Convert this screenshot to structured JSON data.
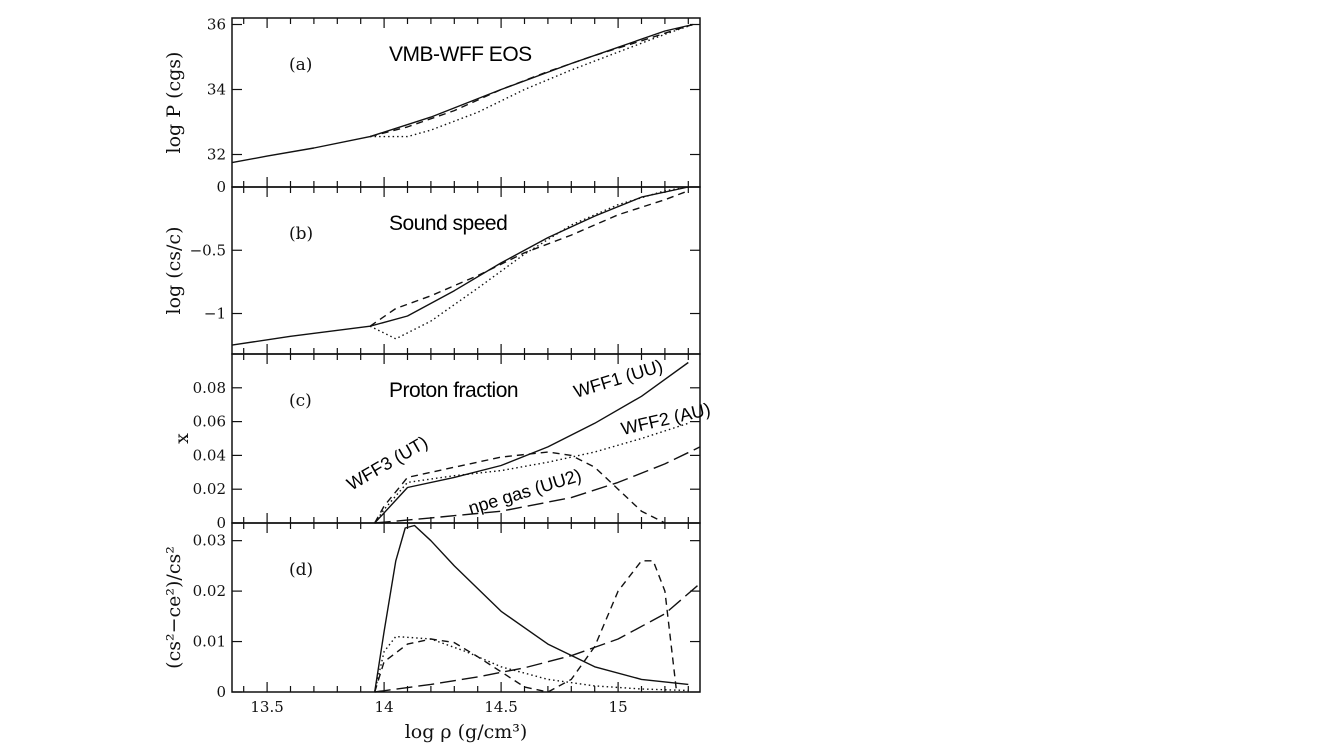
{
  "chart_data": {
    "type": "line",
    "xlabel": "log ρ (g/cm³)",
    "xlim": [
      13.35,
      15.35
    ],
    "xticks": [
      "13.5",
      "14",
      "14.5",
      "15"
    ],
    "panels": [
      {
        "tag": "(a)",
        "title": "VMB-WFF EOS",
        "ylabel": "log P (cgs)",
        "ylim": [
          31.0,
          36.2
        ],
        "yticks": [
          {
            "v": 32,
            "t": "32"
          },
          {
            "v": 34,
            "t": "34"
          },
          {
            "v": 36,
            "t": "36"
          }
        ],
        "series": [
          {
            "style": "solid",
            "x": [
              13.35,
              13.5,
              13.7,
              13.94,
              14.2,
              14.5,
              14.8,
              15.0,
              15.2,
              15.32
            ],
            "y": [
              31.75,
              31.95,
              32.2,
              32.55,
              33.15,
              34.0,
              34.8,
              35.3,
              35.8,
              36.0
            ]
          },
          {
            "style": "dashed",
            "x": [
              13.94,
              14.1,
              14.3,
              14.5,
              14.7,
              14.9,
              15.1,
              15.25,
              15.32
            ],
            "y": [
              32.55,
              32.85,
              33.35,
              34.0,
              34.55,
              35.05,
              35.5,
              35.85,
              36.0
            ]
          },
          {
            "style": "dotted",
            "x": [
              13.94,
              14.1,
              14.2,
              14.4,
              14.6,
              14.8,
              15.0,
              15.2,
              15.32
            ],
            "y": [
              32.55,
              32.55,
              32.75,
              33.3,
              34.0,
              34.6,
              35.15,
              35.7,
              36.0
            ]
          }
        ],
        "labels": []
      },
      {
        "tag": "(b)",
        "title": "Sound speed",
        "ylabel": "log (cs/c)",
        "ylim": [
          -1.32,
          0.0
        ],
        "yticks": [
          {
            "v": 0,
            "t": "0"
          },
          {
            "v": -0.5,
            "t": "−0.5"
          },
          {
            "v": -1,
            "t": "−1"
          }
        ],
        "series": [
          {
            "style": "solid",
            "x": [
              13.35,
              13.6,
              13.94,
              14.1,
              14.3,
              14.5,
              14.7,
              14.9,
              15.1,
              15.3
            ],
            "y": [
              -1.25,
              -1.18,
              -1.1,
              -1.02,
              -0.82,
              -0.6,
              -0.4,
              -0.23,
              -0.08,
              0.0
            ]
          },
          {
            "style": "dashed",
            "x": [
              13.94,
              14.05,
              14.2,
              14.4,
              14.6,
              14.8,
              15.0,
              15.2,
              15.3
            ],
            "y": [
              -1.1,
              -0.96,
              -0.86,
              -0.7,
              -0.52,
              -0.38,
              -0.22,
              -0.1,
              -0.03
            ]
          },
          {
            "style": "dotted",
            "x": [
              13.94,
              14.05,
              14.2,
              14.4,
              14.6,
              14.8,
              15.0,
              15.2,
              15.3
            ],
            "y": [
              -1.1,
              -1.2,
              -1.06,
              -0.8,
              -0.53,
              -0.3,
              -0.14,
              -0.03,
              0.0
            ]
          }
        ],
        "labels": []
      },
      {
        "tag": "(c)",
        "title": "Proton fraction",
        "ylabel": "x",
        "ylim": [
          0.0,
          0.1
        ],
        "yticks": [
          {
            "v": 0,
            "t": "0"
          },
          {
            "v": 0.02,
            "t": "0.02"
          },
          {
            "v": 0.04,
            "t": "0.04"
          },
          {
            "v": 0.06,
            "t": "0.06"
          },
          {
            "v": 0.08,
            "t": "0.08"
          }
        ],
        "series": [
          {
            "style": "solid",
            "x": [
              13.96,
              14.0,
              14.1,
              14.3,
              14.5,
              14.7,
              14.9,
              15.1,
              15.3
            ],
            "y": [
              0.0,
              0.006,
              0.021,
              0.027,
              0.034,
              0.045,
              0.059,
              0.075,
              0.095
            ]
          },
          {
            "style": "dashed",
            "x": [
              13.96,
              14.0,
              14.1,
              14.3,
              14.5,
              14.7,
              14.8,
              14.9,
              15.0,
              15.1,
              15.2
            ],
            "y": [
              0.0,
              0.01,
              0.027,
              0.033,
              0.039,
              0.042,
              0.04,
              0.033,
              0.02,
              0.007,
              0.0
            ]
          },
          {
            "style": "dotted",
            "x": [
              13.96,
              14.0,
              14.1,
              14.3,
              14.5,
              14.7,
              14.9,
              15.1,
              15.3
            ],
            "y": [
              0.0,
              0.008,
              0.024,
              0.028,
              0.031,
              0.036,
              0.042,
              0.05,
              0.059
            ]
          },
          {
            "style": "longdashed",
            "x": [
              13.96,
              14.2,
              14.5,
              14.8,
              15.0,
              15.2,
              15.35
            ],
            "y": [
              0.0,
              0.003,
              0.007,
              0.015,
              0.024,
              0.035,
              0.045
            ]
          }
        ],
        "labels": [
          {
            "text": "WFF1 (UU)",
            "x": 14.82,
            "y": 0.074,
            "rot": -17
          },
          {
            "text": "WFF2 (AU)",
            "x": 15.02,
            "y": 0.052,
            "rot": -13
          },
          {
            "text": "WFF3 (UT)",
            "x": 13.86,
            "y": 0.019,
            "rot": -30
          },
          {
            "text": "npe gas (UU2)",
            "x": 14.37,
            "y": 0.005,
            "rot": -17
          }
        ]
      },
      {
        "tag": "(d)",
        "title": "",
        "ylabel": "(cs²−ce²)/cs²",
        "ylim": [
          0.0,
          0.0335
        ],
        "yticks": [
          {
            "v": 0,
            "t": "0"
          },
          {
            "v": 0.01,
            "t": "0.01"
          },
          {
            "v": 0.02,
            "t": "0.02"
          },
          {
            "v": 0.03,
            "t": "0.03"
          }
        ],
        "series": [
          {
            "style": "solid",
            "x": [
              13.96,
              14.0,
              14.05,
              14.09,
              14.13,
              14.2,
              14.3,
              14.5,
              14.7,
              14.9,
              15.1,
              15.3
            ],
            "y": [
              0.0,
              0.012,
              0.026,
              0.0325,
              0.033,
              0.03,
              0.025,
              0.016,
              0.0095,
              0.005,
              0.0025,
              0.0015
            ]
          },
          {
            "style": "dashed",
            "x": [
              13.96,
              14.0,
              14.1,
              14.2,
              14.3,
              14.4,
              14.5,
              14.6,
              14.7,
              14.8,
              14.9,
              15.0,
              15.1,
              15.15,
              15.2,
              15.25
            ],
            "y": [
              0.0,
              0.006,
              0.0095,
              0.0105,
              0.0098,
              0.007,
              0.004,
              0.001,
              0.0,
              0.0025,
              0.009,
              0.02,
              0.026,
              0.026,
              0.02,
              0.0
            ]
          },
          {
            "style": "dotted",
            "x": [
              13.96,
              14.0,
              14.05,
              14.2,
              14.35,
              14.5,
              14.7,
              14.9,
              15.1,
              15.3
            ],
            "y": [
              0.0,
              0.008,
              0.011,
              0.0105,
              0.008,
              0.005,
              0.0025,
              0.0012,
              0.0006,
              0.0003
            ]
          },
          {
            "style": "longdashed",
            "x": [
              13.96,
              14.2,
              14.4,
              14.6,
              14.8,
              15.0,
              15.2,
              15.35
            ],
            "y": [
              0.0,
              0.0015,
              0.003,
              0.0048,
              0.0072,
              0.0105,
              0.0155,
              0.0215
            ]
          }
        ],
        "labels": []
      }
    ]
  }
}
